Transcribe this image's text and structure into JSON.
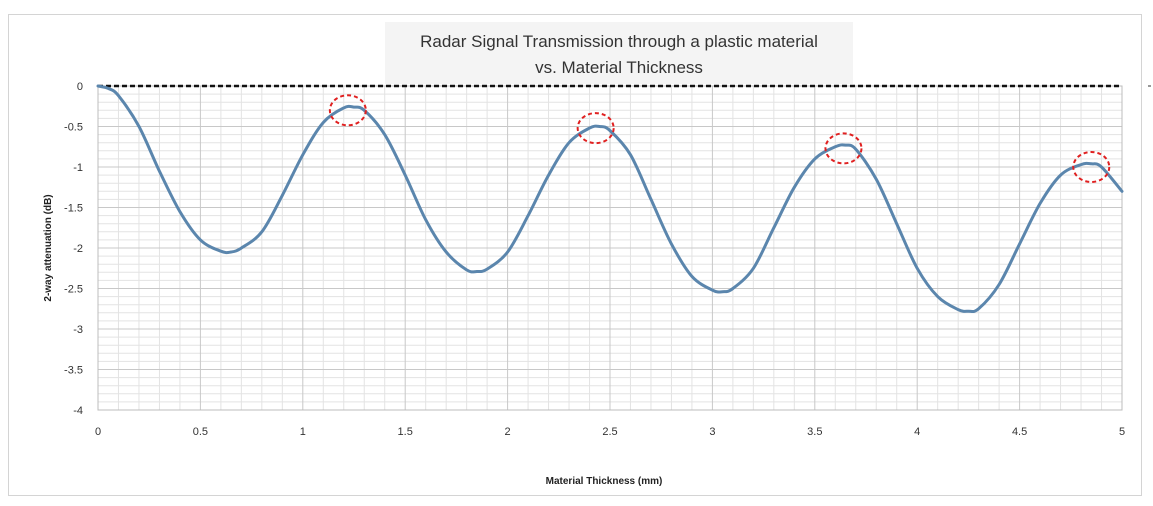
{
  "chart_data": {
    "type": "line",
    "title_line1": "Radar Signal Transmission through a plastic material",
    "title_line2": "vs. Material Thickness",
    "xlabel": "Material Thickness (mm)",
    "ylabel": "2-way attenuation (dB)",
    "xlim": [
      0,
      5
    ],
    "ylim": [
      -4,
      0
    ],
    "x_ticks": [
      "0",
      "0.5",
      "1",
      "1.5",
      "2",
      "2.5",
      "3",
      "3.5",
      "4",
      "4.5",
      "5"
    ],
    "y_ticks": [
      "0",
      "-0.5",
      "-1",
      "-1.5",
      "-2",
      "-2.5",
      "-3",
      "-3.5",
      "-4"
    ],
    "grid": true,
    "series": [
      {
        "name": "",
        "color": "#5b86ad",
        "x": [
          0,
          0.05,
          0.1,
          0.2,
          0.3,
          0.4,
          0.5,
          0.6,
          0.65,
          0.7,
          0.8,
          0.9,
          1.0,
          1.1,
          1.2,
          1.25,
          1.3,
          1.4,
          1.5,
          1.6,
          1.7,
          1.8,
          1.85,
          1.9,
          2.0,
          2.1,
          2.2,
          2.3,
          2.4,
          2.45,
          2.5,
          2.6,
          2.7,
          2.8,
          2.9,
          3.0,
          3.05,
          3.1,
          3.2,
          3.3,
          3.4,
          3.5,
          3.6,
          3.65,
          3.7,
          3.8,
          3.9,
          4.0,
          4.1,
          4.2,
          4.25,
          4.3,
          4.4,
          4.5,
          4.6,
          4.7,
          4.8,
          4.85,
          4.9,
          5.0
        ],
        "y": [
          0,
          -0.03,
          -0.12,
          -0.5,
          -1.05,
          -1.55,
          -1.9,
          -2.04,
          -2.05,
          -2.0,
          -1.8,
          -1.35,
          -0.85,
          -0.45,
          -0.27,
          -0.26,
          -0.3,
          -0.6,
          -1.1,
          -1.65,
          -2.05,
          -2.27,
          -2.29,
          -2.26,
          -2.05,
          -1.6,
          -1.1,
          -0.7,
          -0.52,
          -0.5,
          -0.55,
          -0.85,
          -1.4,
          -1.95,
          -2.35,
          -2.52,
          -2.54,
          -2.5,
          -2.25,
          -1.75,
          -1.25,
          -0.9,
          -0.75,
          -0.73,
          -0.78,
          -1.15,
          -1.7,
          -2.25,
          -2.6,
          -2.76,
          -2.78,
          -2.75,
          -2.45,
          -1.95,
          -1.45,
          -1.1,
          -0.97,
          -0.96,
          -1.0,
          -1.3
        ]
      }
    ],
    "reference_line": {
      "y": 0,
      "style": "dashed",
      "color": "#111111"
    },
    "highlights": [
      {
        "x": 1.22,
        "y": -0.3
      },
      {
        "x": 2.43,
        "y": -0.52
      },
      {
        "x": 3.64,
        "y": -0.77
      },
      {
        "x": 4.85,
        "y": -1.0
      }
    ],
    "highlight_color": "#e02020"
  }
}
